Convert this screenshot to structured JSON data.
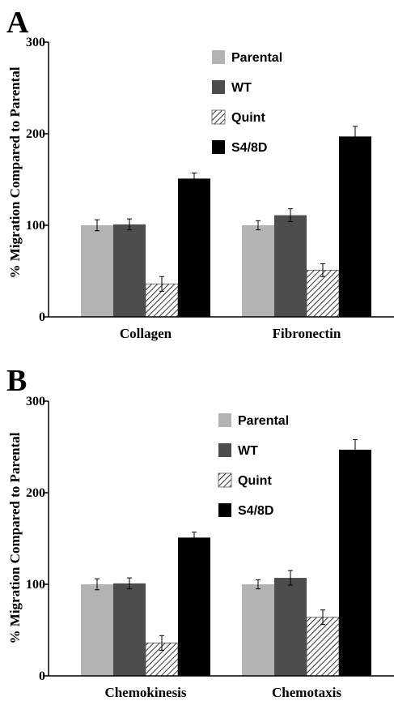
{
  "chart_data": [
    {
      "panel": "A",
      "type": "bar",
      "categories": [
        "Collagen",
        "Fibronectin"
      ],
      "series": [
        {
          "name": "Parental",
          "values": [
            100,
            100
          ],
          "errors": [
            6,
            5
          ],
          "color": "#b3b3b3",
          "pattern": "solid"
        },
        {
          "name": "WT",
          "values": [
            101,
            111
          ],
          "errors": [
            6,
            7
          ],
          "color": "#4d4d4d",
          "pattern": "solid"
        },
        {
          "name": "Quint",
          "values": [
            36,
            51
          ],
          "errors": [
            8,
            7
          ],
          "color": "#ffffff",
          "pattern": "hatch"
        },
        {
          "name": "S4/8D",
          "values": [
            151,
            197
          ],
          "errors": [
            6,
            11
          ],
          "color": "#000000",
          "pattern": "solid"
        }
      ],
      "ylabel": "% Migration Compared to Parental",
      "xlabel": "",
      "ylim": [
        0,
        300
      ],
      "yticks": [
        "0",
        "100",
        "200",
        "300"
      ],
      "legend": "top-right",
      "grid": false
    },
    {
      "panel": "B",
      "type": "bar",
      "categories": [
        "Chemokinesis",
        "Chemotaxis"
      ],
      "series": [
        {
          "name": "Parental",
          "values": [
            100,
            100
          ],
          "errors": [
            6,
            5
          ],
          "color": "#b3b3b3",
          "pattern": "solid"
        },
        {
          "name": "WT",
          "values": [
            101,
            107
          ],
          "errors": [
            6,
            8
          ],
          "color": "#4d4d4d",
          "pattern": "solid"
        },
        {
          "name": "Quint",
          "values": [
            36,
            64
          ],
          "errors": [
            8,
            8
          ],
          "color": "#ffffff",
          "pattern": "hatch"
        },
        {
          "name": "S4/8D",
          "values": [
            151,
            247
          ],
          "errors": [
            6,
            11
          ],
          "color": "#000000",
          "pattern": "solid"
        }
      ],
      "ylabel": "% Migration Compared to Parental",
      "xlabel": "",
      "ylim": [
        0,
        300
      ],
      "yticks": [
        "0",
        "100",
        "200",
        "300"
      ],
      "legend": "top-right",
      "grid": false
    }
  ]
}
